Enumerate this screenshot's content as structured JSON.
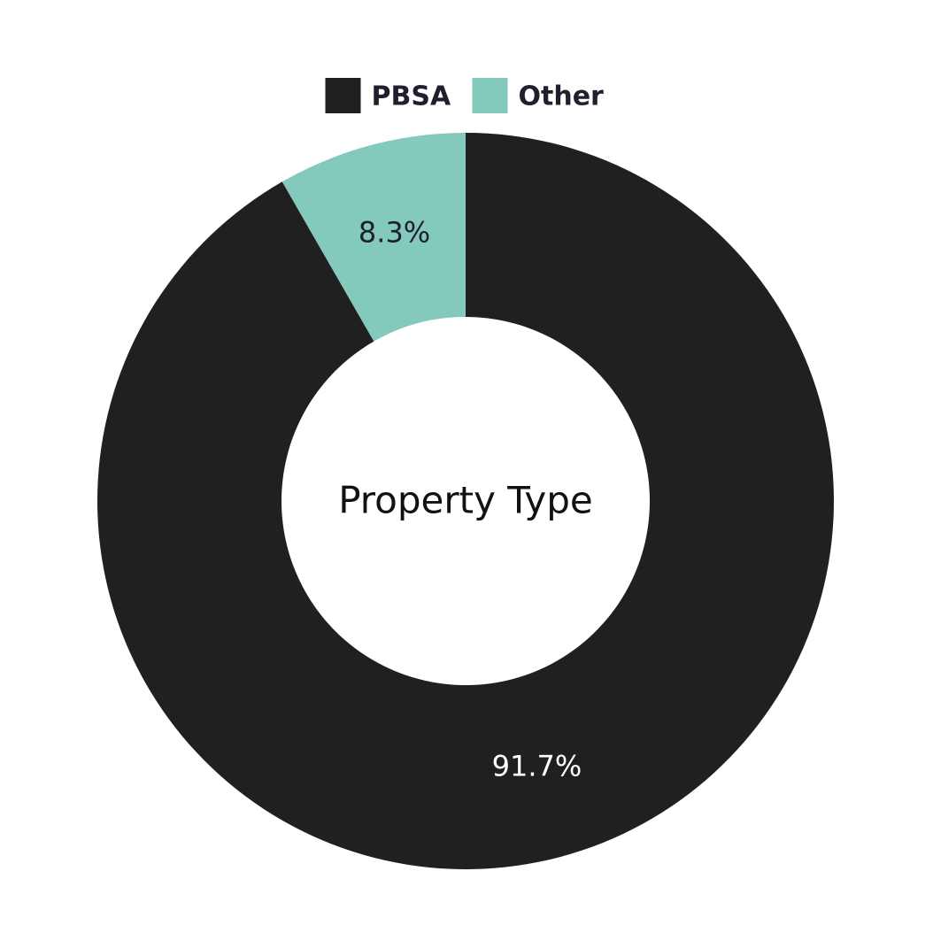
{
  "chart_data": {
    "type": "donut",
    "center_text": "Property Type",
    "categories": [
      "PBSA",
      "Other"
    ],
    "values": [
      91.7,
      8.3
    ],
    "value_labels": [
      "91.7%",
      "8.3%"
    ],
    "colors": [
      "#202020",
      "#83c9bc"
    ],
    "label_colors": [
      "#ffffff",
      "#1f1f2e"
    ],
    "legend": "top"
  }
}
